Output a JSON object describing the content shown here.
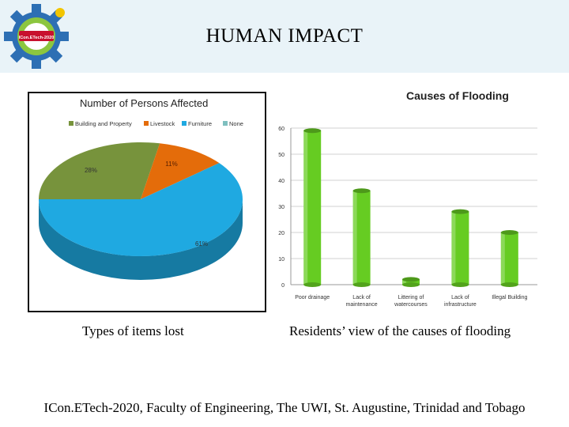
{
  "slide": {
    "title": "HUMAN IMPACT",
    "caption_left": "Types of items lost",
    "caption_right": "Residents’ view of the causes of flooding",
    "footer": "ICon.ETech-2020, Faculty of Engineering, The UWI, St. Augustine, Trinidad and Tobago"
  },
  "logo": {
    "text": "ICon.ETech-2020"
  },
  "colors": {
    "header_bg": "#e9f3f8",
    "pie_building": "#77933c",
    "pie_livestock": "#e46c0a",
    "pie_furniture": "#1fa9e1",
    "pie_none": "#7fbfbf",
    "bar_green": "#66cc22"
  },
  "chart_data": [
    {
      "type": "pie",
      "title": "Number of Persons Affected",
      "legend_position": "top",
      "categories": [
        "Building and Property",
        "Livestock",
        "Furniture",
        "None"
      ],
      "values": [
        28,
        11,
        61,
        0
      ],
      "labels": [
        "28%",
        "11%",
        "61%",
        ""
      ]
    },
    {
      "type": "bar",
      "title": "Causes of Flooding",
      "categories": [
        "Poor drainage",
        "Lack of maintenance",
        "Littering of watercourses",
        "Lack of infrastructure",
        "Illegal Building"
      ],
      "values": [
        59,
        36,
        2,
        28,
        20
      ],
      "ylim": [
        0,
        60
      ],
      "yticks": [
        "0",
        "10",
        "20",
        "30",
        "40",
        "50",
        "60"
      ],
      "grid": true
    }
  ]
}
